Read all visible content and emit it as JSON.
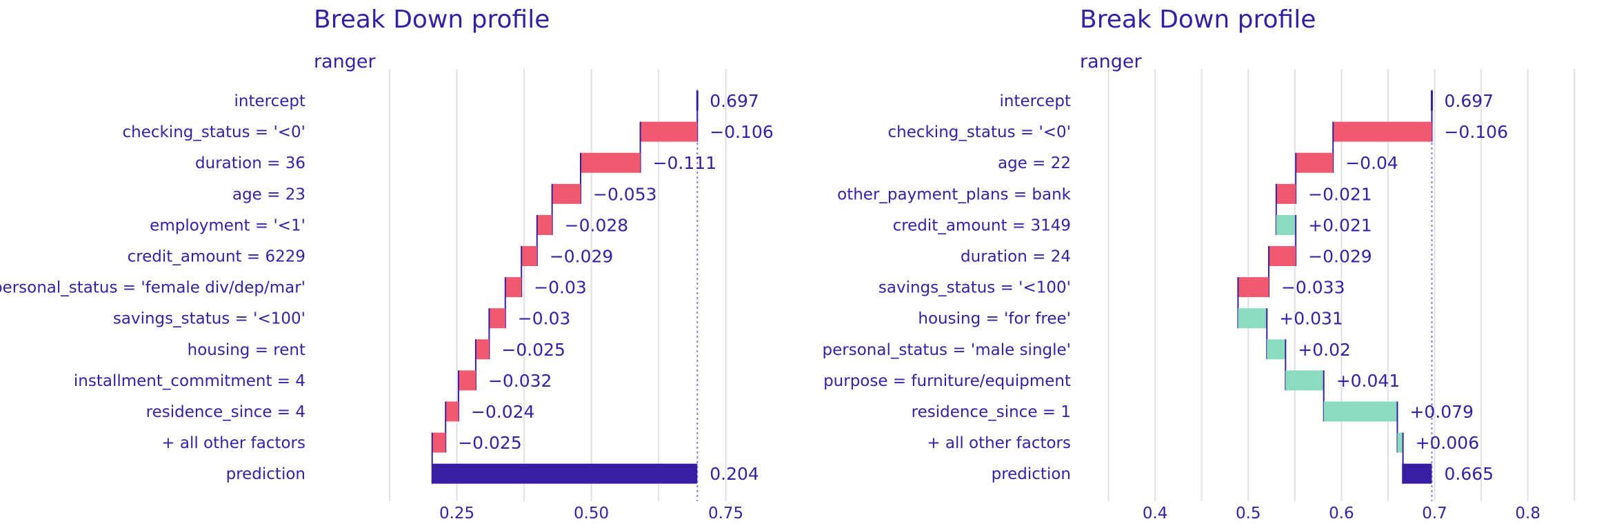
{
  "colors": {
    "negative": "#f05a71",
    "positive": "#8bdcbe",
    "prediction": "#371ea3",
    "text": "#371ea3",
    "grid": "#e0e0e6",
    "connector": "#371ea3",
    "baseline": "#8b7fe0"
  },
  "chart_data": [
    {
      "type": "bar",
      "subtype": "waterfall",
      "title": "Break Down profile",
      "subtitle": "ranger",
      "xlim": [
        0.08,
        0.83
      ],
      "xticks": [
        0.25,
        0.5,
        0.75
      ],
      "xtick_labels": [
        "0.25",
        "0.50",
        "0.75"
      ],
      "grid": true,
      "baseline": 0.697,
      "rows": [
        {
          "label": "intercept",
          "start": 0.697,
          "end": 0.697,
          "value_label": "0.697",
          "kind": "intercept"
        },
        {
          "label": "checking_status = '<0'",
          "start": 0.697,
          "end": 0.591,
          "value_label": "−0.106",
          "kind": "negative"
        },
        {
          "label": "duration = 36",
          "start": 0.591,
          "end": 0.48,
          "value_label": "−0.111",
          "kind": "negative"
        },
        {
          "label": "age = 23",
          "start": 0.48,
          "end": 0.427,
          "value_label": "−0.053",
          "kind": "negative"
        },
        {
          "label": "employment = '<1'",
          "start": 0.427,
          "end": 0.399,
          "value_label": "−0.028",
          "kind": "negative"
        },
        {
          "label": "credit_amount = 6229",
          "start": 0.399,
          "end": 0.37,
          "value_label": "−0.029",
          "kind": "negative"
        },
        {
          "label": "personal_status = 'female div/dep/mar'",
          "start": 0.37,
          "end": 0.34,
          "value_label": "−0.03",
          "kind": "negative"
        },
        {
          "label": "savings_status = '<100'",
          "start": 0.34,
          "end": 0.31,
          "value_label": "−0.03",
          "kind": "negative"
        },
        {
          "label": "housing = rent",
          "start": 0.31,
          "end": 0.285,
          "value_label": "−0.025",
          "kind": "negative"
        },
        {
          "label": "installment_commitment = 4",
          "start": 0.285,
          "end": 0.253,
          "value_label": "−0.032",
          "kind": "negative"
        },
        {
          "label": "residence_since = 4",
          "start": 0.253,
          "end": 0.229,
          "value_label": "−0.024",
          "kind": "negative"
        },
        {
          "label": "+ all other factors",
          "start": 0.229,
          "end": 0.204,
          "value_label": "−0.025",
          "kind": "negative"
        },
        {
          "label": "prediction",
          "start": 0.204,
          "end": 0.697,
          "value_label": "0.204",
          "kind": "prediction"
        }
      ]
    },
    {
      "type": "bar",
      "subtype": "waterfall",
      "title": "Break Down profile",
      "subtitle": "ranger",
      "xlim": [
        0.32,
        0.855
      ],
      "xticks": [
        0.4,
        0.5,
        0.6,
        0.7,
        0.8
      ],
      "xtick_labels": [
        "0.4",
        "0.5",
        "0.6",
        "0.7",
        "0.8"
      ],
      "grid": true,
      "baseline": 0.697,
      "rows": [
        {
          "label": "intercept",
          "start": 0.697,
          "end": 0.697,
          "value_label": "0.697",
          "kind": "intercept"
        },
        {
          "label": "checking_status = '<0'",
          "start": 0.697,
          "end": 0.591,
          "value_label": "−0.106",
          "kind": "negative"
        },
        {
          "label": "age = 22",
          "start": 0.591,
          "end": 0.551,
          "value_label": "−0.04",
          "kind": "negative"
        },
        {
          "label": "other_payment_plans = bank",
          "start": 0.551,
          "end": 0.53,
          "value_label": "−0.021",
          "kind": "negative"
        },
        {
          "label": "credit_amount = 3149",
          "start": 0.53,
          "end": 0.551,
          "value_label": "+0.021",
          "kind": "positive"
        },
        {
          "label": "duration = 24",
          "start": 0.551,
          "end": 0.522,
          "value_label": "−0.029",
          "kind": "negative"
        },
        {
          "label": "savings_status = '<100'",
          "start": 0.522,
          "end": 0.489,
          "value_label": "−0.033",
          "kind": "negative"
        },
        {
          "label": "housing = 'for free'",
          "start": 0.489,
          "end": 0.52,
          "value_label": "+0.031",
          "kind": "positive"
        },
        {
          "label": "personal_status = 'male single'",
          "start": 0.52,
          "end": 0.54,
          "value_label": "+0.02",
          "kind": "positive"
        },
        {
          "label": "purpose = furniture/equipment",
          "start": 0.54,
          "end": 0.581,
          "value_label": "+0.041",
          "kind": "positive"
        },
        {
          "label": "residence_since = 1",
          "start": 0.581,
          "end": 0.66,
          "value_label": "+0.079",
          "kind": "positive"
        },
        {
          "label": "+ all other factors",
          "start": 0.66,
          "end": 0.666,
          "value_label": "+0.006",
          "kind": "positive"
        },
        {
          "label": "prediction",
          "start": 0.665,
          "end": 0.697,
          "value_label": "0.665",
          "kind": "prediction"
        }
      ]
    }
  ]
}
